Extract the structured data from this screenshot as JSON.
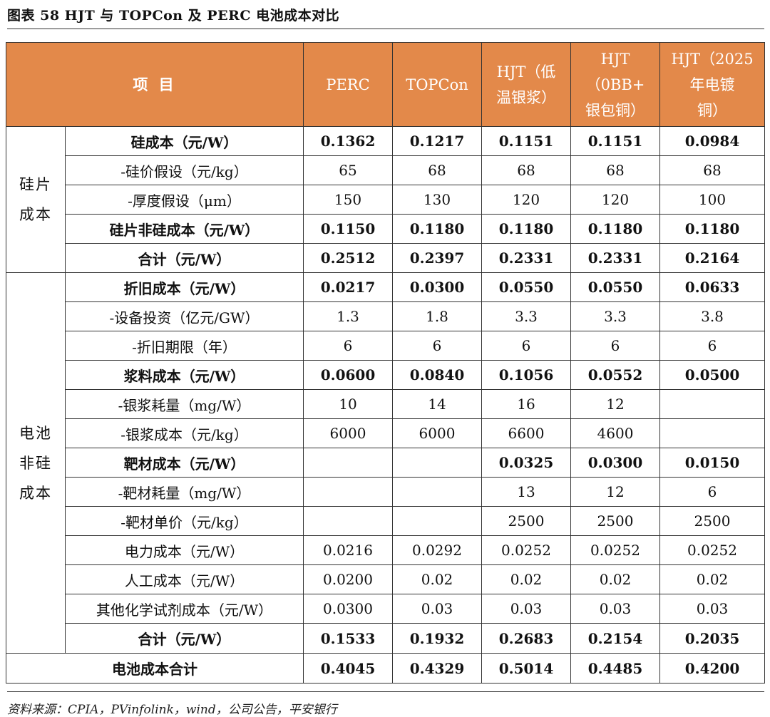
{
  "figure_title": "图表 58    HJT 与 TOPCon 及 PERC 电池成本对比",
  "columns": {
    "item": "项 目",
    "c1": "PERC",
    "c2": "TOPCon",
    "c3a": "HJT（低",
    "c3b": "温银浆）",
    "c4a": "HJT",
    "c4b": "（0BB+",
    "c4c": "银包铜）",
    "c5a": "HJT（2025",
    "c5b": "年电镀",
    "c5c": "铜）"
  },
  "sections": {
    "wafer_a": "硅片",
    "wafer_b": "成本",
    "cell_a": "电池",
    "cell_b": "非硅",
    "cell_c": "成本"
  },
  "rows": [
    {
      "label": "硅成本（元/W）",
      "values": [
        "0.1362",
        "0.1217",
        "0.1151",
        "0.1151",
        "0.0984"
      ]
    },
    {
      "label": "-硅价假设（元/kg）",
      "values": [
        "65",
        "68",
        "68",
        "68",
        "68"
      ]
    },
    {
      "label": "-厚度假设（μm）",
      "values": [
        "150",
        "130",
        "120",
        "120",
        "100"
      ]
    },
    {
      "label": "硅片非硅成本（元/W）",
      "values": [
        "0.1150",
        "0.1180",
        "0.1180",
        "0.1180",
        "0.1180"
      ]
    },
    {
      "label": "合计（元/W）",
      "values": [
        "0.2512",
        "0.2397",
        "0.2331",
        "0.2331",
        "0.2164"
      ]
    },
    {
      "label": "折旧成本（元/W）",
      "values": [
        "0.0217",
        "0.0300",
        "0.0550",
        "0.0550",
        "0.0633"
      ]
    },
    {
      "label": "-设备投资（亿元/GW）",
      "values": [
        "1.3",
        "1.8",
        "3.3",
        "3.3",
        "3.8"
      ]
    },
    {
      "label": "-折旧期限（年）",
      "values": [
        "6",
        "6",
        "6",
        "6",
        "6"
      ]
    },
    {
      "label": "浆料成本（元/W）",
      "values": [
        "0.0600",
        "0.0840",
        "0.1056",
        "0.0552",
        "0.0500"
      ]
    },
    {
      "label": "-银浆耗量（mg/W）",
      "values": [
        "10",
        "14",
        "16",
        "12",
        ""
      ]
    },
    {
      "label": "-银浆成本（元/kg）",
      "values": [
        "6000",
        "6000",
        "6600",
        "4600",
        ""
      ]
    },
    {
      "label": "靶材成本（元/W）",
      "values": [
        "",
        "",
        "0.0325",
        "0.0300",
        "0.0150"
      ]
    },
    {
      "label": "-靶材耗量（mg/W）",
      "values": [
        "",
        "",
        "13",
        "12",
        "6"
      ]
    },
    {
      "label": "-靶材单价（元/kg）",
      "values": [
        "",
        "",
        "2500",
        "2500",
        "2500"
      ]
    },
    {
      "label": "电力成本（元/W）",
      "values": [
        "0.0216",
        "0.0292",
        "0.0252",
        "0.0252",
        "0.0252"
      ]
    },
    {
      "label": "人工成本（元/W）",
      "values": [
        "0.0200",
        "0.02",
        "0.02",
        "0.02",
        "0.02"
      ]
    },
    {
      "label": "其他化学试剂成本（元/W）",
      "values": [
        "0.0300",
        "0.03",
        "0.03",
        "0.03",
        "0.03"
      ]
    },
    {
      "label": "合计（元/W）",
      "values": [
        "0.1533",
        "0.1932",
        "0.2683",
        "0.2154",
        "0.2035"
      ]
    },
    {
      "label": "电池成本合计",
      "values": [
        "0.4045",
        "0.4329",
        "0.5014",
        "0.4485",
        "0.4200"
      ]
    }
  ],
  "footer": "资料来源：CPIA，PVinfolink，wind，公司公告，平安银行"
}
